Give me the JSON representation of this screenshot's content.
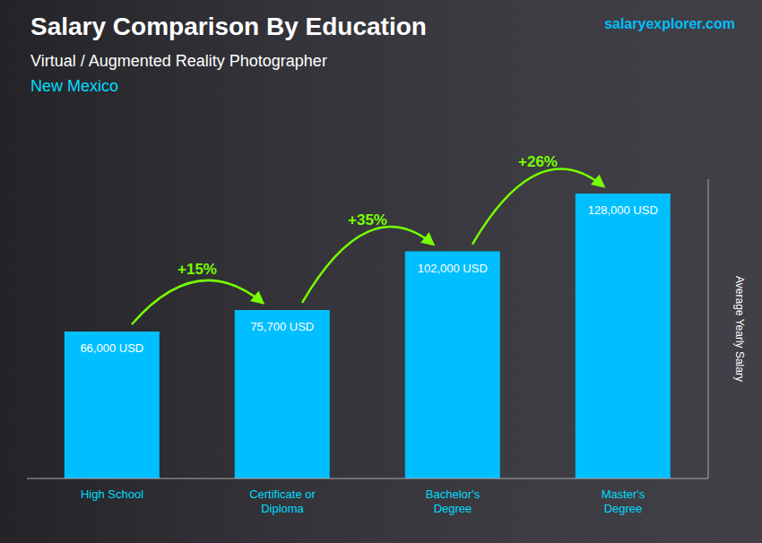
{
  "chart_data": {
    "type": "bar",
    "title": "Salary Comparison By Education",
    "subtitle": "Virtual / Augmented Reality Photographer",
    "categories": [
      "High School",
      "Certificate or\nDiploma",
      "Bachelor's\nDegree",
      "Master's\nDegree"
    ],
    "values": [
      66000,
      75700,
      102000,
      128000
    ],
    "value_labels": [
      "66,000 USD",
      "75,700 USD",
      "102,000 USD",
      "128,000 USD"
    ],
    "data_labels": true,
    "color": "#00BFFF",
    "ylabel": "Average Yearly Salary",
    "ylim": [
      0,
      134400
    ],
    "tick_labels": "x",
    "grid": false,
    "annotations": [
      {
        "text": "New Mexico"
      },
      {
        "text": "salaryexplorer.com"
      },
      {
        "text": "+15%",
        "from": "High School",
        "to": "Certificate or\nDiploma",
        "color": "#77FF00"
      },
      {
        "text": "+35%",
        "from": "Certificate or\nDiploma",
        "to": "Bachelor's\nDegree",
        "color": "#77FF00"
      },
      {
        "text": "+26%",
        "from": "Bachelor's\nDegree",
        "to": "Master's\nDegree",
        "color": "#77FF00"
      }
    ]
  }
}
